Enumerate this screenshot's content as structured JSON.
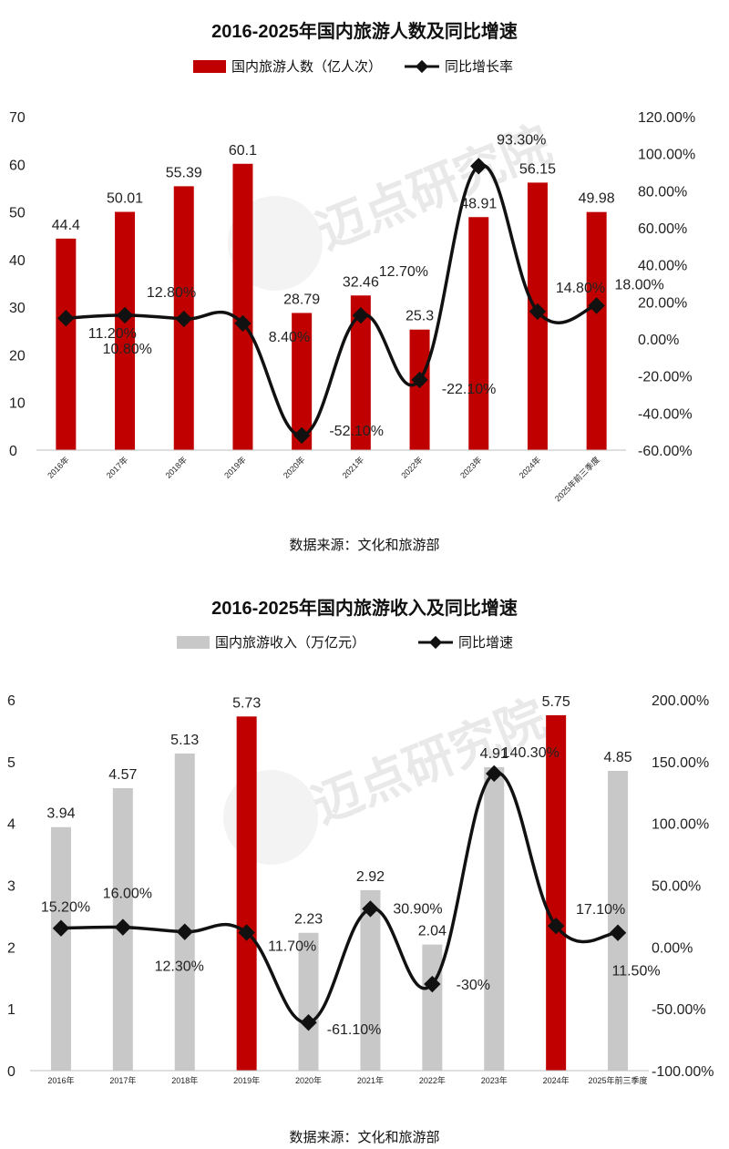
{
  "charts": [
    {
      "title": "2016-2025年国内旅游人数及同比增速",
      "source": "数据来源：文化和旅游部"
    },
    {
      "title": "2016-2025年国内旅游收入及同比增速",
      "source": "数据来源：文化和旅游部"
    }
  ],
  "watermark": "迈点研究院",
  "chart_data": [
    {
      "type": "bar",
      "title": "2016-2025年国内旅游人数及同比增速",
      "categories": [
        "2016年",
        "2017年",
        "2018年",
        "2019年",
        "2020年",
        "2021年",
        "2022年",
        "2023年",
        "2024年",
        "2025年前三季度"
      ],
      "series": [
        {
          "name": "国内旅游人数（亿人次）",
          "type": "bar",
          "axis": "left",
          "values": [
            44.4,
            50.01,
            55.39,
            60.1,
            28.79,
            32.46,
            25.3,
            48.91,
            56.15,
            49.98
          ],
          "labels": [
            "44.4",
            "50.01",
            "55.39",
            "60.1",
            "28.79",
            "32.46",
            "25.3",
            "48.91",
            "56.15",
            "49.98"
          ]
        },
        {
          "name": "同比增长率",
          "type": "line",
          "axis": "right",
          "values": [
            11.2,
            12.8,
            10.8,
            8.4,
            -52.1,
            12.7,
            -22.1,
            93.3,
            14.8,
            18.0
          ],
          "labels": [
            "11.20%",
            "12.80%",
            "10.80%",
            "8.40%",
            "-52.10%",
            "12.70%",
            "-22.10%",
            "93.30%",
            "14.80%",
            "18.00%"
          ]
        }
      ],
      "ylim_left": [
        0,
        70
      ],
      "yticks_left": [
        "0",
        "10",
        "20",
        "30",
        "40",
        "50",
        "60",
        "70"
      ],
      "ylim_right": [
        -60,
        120
      ],
      "yticks_right": [
        "-60.00%",
        "-40.00%",
        "-20.00%",
        "0.00%",
        "20.00%",
        "40.00%",
        "60.00%",
        "80.00%",
        "100.00%",
        "120.00%"
      ],
      "colors": {
        "bar": "#c00000",
        "line": "#111111"
      },
      "legend": "top-center",
      "grid": false
    },
    {
      "type": "bar",
      "title": "2016-2025年国内旅游收入及同比增速",
      "categories": [
        "2016年",
        "2017年",
        "2018年",
        "2019年",
        "2020年",
        "2021年",
        "2022年",
        "2023年",
        "2024年",
        "2025年前三季度"
      ],
      "series": [
        {
          "name": "国内旅游收入（万亿元）",
          "type": "bar",
          "axis": "left",
          "values": [
            3.94,
            4.57,
            5.13,
            5.73,
            2.23,
            2.92,
            2.04,
            4.91,
            5.75,
            4.85
          ],
          "labels": [
            "3.94",
            "4.57",
            "5.13",
            "5.73",
            "2.23",
            "2.92",
            "2.04",
            "4.91",
            "5.75",
            "4.85"
          ],
          "highlighted": [
            "2019年",
            "2024年"
          ]
        },
        {
          "name": "同比增速",
          "type": "line",
          "axis": "right",
          "values": [
            15.2,
            16.0,
            12.3,
            11.7,
            -61.1,
            30.9,
            -30,
            140.3,
            17.1,
            11.5
          ],
          "labels": [
            "15.20%",
            "16.00%",
            "12.30%",
            "11.70%",
            "-61.10%",
            "30.90%",
            "-30%",
            "140.30%",
            "17.10%",
            "11.50%"
          ]
        }
      ],
      "ylim_left": [
        0,
        6
      ],
      "yticks_left": [
        "0",
        "1",
        "2",
        "3",
        "4",
        "5",
        "6"
      ],
      "ylim_right": [
        -100,
        200
      ],
      "yticks_right": [
        "-100.00%",
        "-50.00%",
        "0.00%",
        "50.00%",
        "100.00%",
        "150.00%",
        "200.00%"
      ],
      "colors": {
        "bar": "#c8c8c8",
        "bar_highlight": "#c00000",
        "line": "#111111"
      },
      "legend": "top-center",
      "grid": false
    }
  ]
}
